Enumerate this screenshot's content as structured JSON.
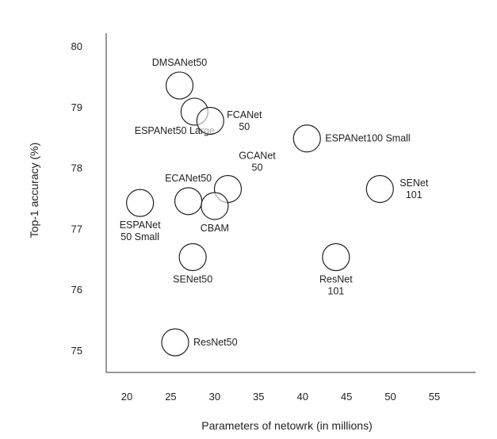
{
  "chart_data": {
    "type": "scatter",
    "title": "",
    "xlabel": "Parameters of netowrk (in millions)",
    "ylabel": "Top-1 accuracy (%)",
    "xlim": [
      17.5,
      60
    ],
    "ylim": [
      74.8,
      80.3
    ],
    "xticks": [
      "20",
      "25",
      "30",
      "35",
      "40",
      "45",
      "50",
      "55"
    ],
    "yticks": [
      "75",
      "76",
      "77",
      "78",
      "79",
      "80"
    ],
    "grid": false,
    "points": [
      {
        "name": "DMSANet50",
        "label_lines": [
          "DMSANet50"
        ],
        "x": 26.0,
        "y": 79.35,
        "label_pos": "top"
      },
      {
        "name": "ESPANet50 Large",
        "label_lines": [
          "ESPANet50 Large"
        ],
        "x": 27.7,
        "y": 78.92,
        "label_pos": "bottom-left"
      },
      {
        "name": "FCANet 50",
        "label_lines": [
          "FCANet",
          "50"
        ],
        "x": 29.5,
        "y": 78.77,
        "label_pos": "right"
      },
      {
        "name": "ESPANet100 Small",
        "label_lines": [
          "ESPANet100 Small"
        ],
        "x": 40.5,
        "y": 78.48,
        "label_pos": "right"
      },
      {
        "name": "GCANet 50",
        "label_lines": [
          "GCANet",
          "50"
        ],
        "x": 31.5,
        "y": 77.65,
        "label_pos": "top-right"
      },
      {
        "name": "ECANet50",
        "label_lines": [
          "ECANet50"
        ],
        "x": 27.0,
        "y": 77.45,
        "label_pos": "top"
      },
      {
        "name": "CBAM",
        "label_lines": [
          "CBAM"
        ],
        "x": 30.0,
        "y": 77.37,
        "label_pos": "bottom"
      },
      {
        "name": "ESPANet 50 Small",
        "label_lines": [
          "ESPANet",
          "50 Small"
        ],
        "x": 21.5,
        "y": 77.42,
        "label_pos": "bottom"
      },
      {
        "name": "SENet 101",
        "label_lines": [
          "SENet",
          "101"
        ],
        "x": 48.8,
        "y": 77.65,
        "label_pos": "right"
      },
      {
        "name": "SENet50",
        "label_lines": [
          "SENet50"
        ],
        "x": 27.5,
        "y": 76.53,
        "label_pos": "bottom"
      },
      {
        "name": "ResNet 101",
        "label_lines": [
          "ResNet",
          "101"
        ],
        "x": 43.8,
        "y": 76.53,
        "label_pos": "bottom"
      },
      {
        "name": "ResNet50",
        "label_lines": [
          "ResNet50"
        ],
        "x": 25.5,
        "y": 75.13,
        "label_pos": "right"
      }
    ]
  }
}
